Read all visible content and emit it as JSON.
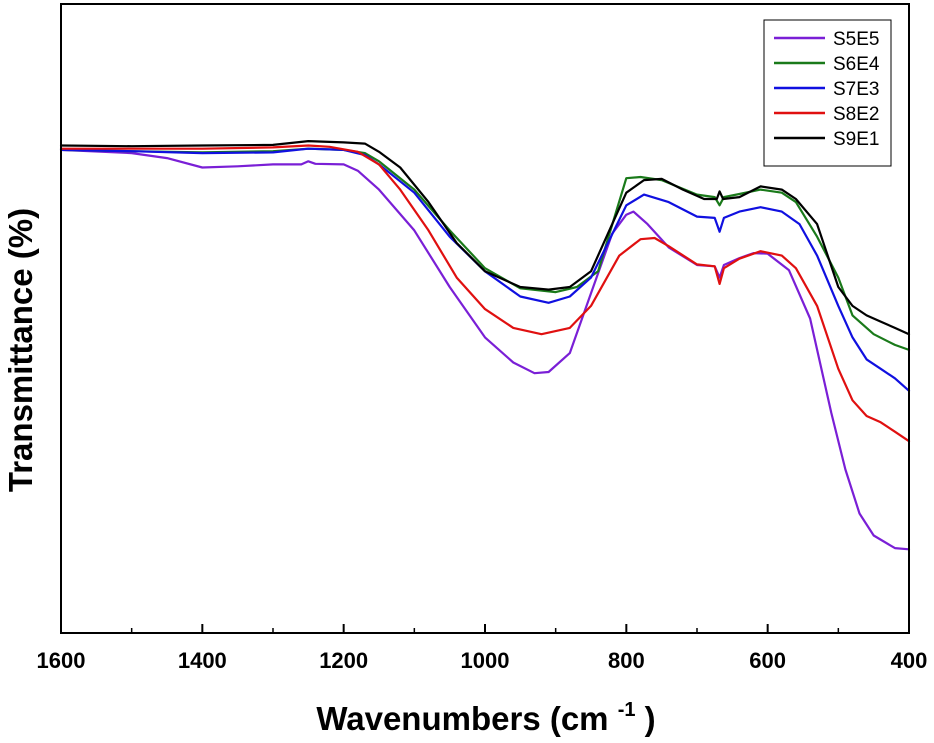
{
  "chart_data": {
    "type": "line",
    "title": "",
    "xlabel": "Wavenumbers (cm",
    "xlabel_sup": "-1",
    "xlabel_close": ")",
    "ylabel": "Transmittance (%)",
    "xlim": [
      1600,
      400
    ],
    "ylim": [
      0,
      100
    ],
    "x_ticks": [
      1600,
      1400,
      1200,
      1000,
      800,
      600,
      400
    ],
    "x_tick_labels": [
      "1600",
      "1400",
      "1200",
      "1000",
      "800",
      "600",
      "400"
    ],
    "x_minor_ticks": [
      1500,
      1300,
      1100,
      900,
      700,
      500
    ],
    "y_ticks_shown": false,
    "grid": false,
    "legend_position": "top-right",
    "series": [
      {
        "name": "S5E5",
        "color": "#7a1fd6",
        "points": [
          [
            1600,
            76.8
          ],
          [
            1500,
            76.3
          ],
          [
            1450,
            75.5
          ],
          [
            1400,
            74.0
          ],
          [
            1350,
            74.2
          ],
          [
            1300,
            74.5
          ],
          [
            1260,
            74.5
          ],
          [
            1250,
            75.0
          ],
          [
            1240,
            74.6
          ],
          [
            1200,
            74.5
          ],
          [
            1180,
            73.5
          ],
          [
            1150,
            70.5
          ],
          [
            1100,
            64.0
          ],
          [
            1050,
            55.0
          ],
          [
            1000,
            47.0
          ],
          [
            960,
            43.0
          ],
          [
            930,
            41.3
          ],
          [
            910,
            41.5
          ],
          [
            880,
            44.5
          ],
          [
            850,
            54.0
          ],
          [
            820,
            63.5
          ],
          [
            800,
            66.5
          ],
          [
            790,
            67.0
          ],
          [
            770,
            65.0
          ],
          [
            740,
            61.3
          ],
          [
            700,
            58.5
          ],
          [
            675,
            58.3
          ],
          [
            668,
            56.5
          ],
          [
            662,
            58.5
          ],
          [
            640,
            59.6
          ],
          [
            620,
            60.4
          ],
          [
            600,
            60.3
          ],
          [
            570,
            57.7
          ],
          [
            540,
            50.0
          ],
          [
            510,
            35.0
          ],
          [
            490,
            26.0
          ],
          [
            470,
            19.0
          ],
          [
            450,
            15.5
          ],
          [
            420,
            13.5
          ],
          [
            400,
            13.3
          ]
        ]
      },
      {
        "name": "S6E4",
        "color": "#1a7a1a",
        "points": [
          [
            1600,
            76.8
          ],
          [
            1500,
            76.6
          ],
          [
            1400,
            76.4
          ],
          [
            1300,
            76.6
          ],
          [
            1250,
            77.0
          ],
          [
            1200,
            76.8
          ],
          [
            1170,
            76.3
          ],
          [
            1150,
            75.0
          ],
          [
            1100,
            70.5
          ],
          [
            1050,
            64.0
          ],
          [
            1000,
            58.0
          ],
          [
            950,
            54.8
          ],
          [
            900,
            54.2
          ],
          [
            870,
            55.0
          ],
          [
            840,
            57.5
          ],
          [
            800,
            72.3
          ],
          [
            780,
            72.5
          ],
          [
            750,
            72.0
          ],
          [
            700,
            69.7
          ],
          [
            675,
            69.3
          ],
          [
            668,
            68.0
          ],
          [
            662,
            69.3
          ],
          [
            640,
            69.8
          ],
          [
            610,
            70.5
          ],
          [
            580,
            70.0
          ],
          [
            560,
            68.5
          ],
          [
            530,
            63.0
          ],
          [
            500,
            56.5
          ],
          [
            480,
            50.5
          ],
          [
            450,
            47.5
          ],
          [
            420,
            45.8
          ],
          [
            400,
            45.0
          ]
        ]
      },
      {
        "name": "S7E3",
        "color": "#1010e0",
        "points": [
          [
            1600,
            76.8
          ],
          [
            1500,
            76.6
          ],
          [
            1400,
            76.3
          ],
          [
            1300,
            76.4
          ],
          [
            1250,
            77.0
          ],
          [
            1200,
            76.8
          ],
          [
            1170,
            76.0
          ],
          [
            1150,
            74.5
          ],
          [
            1100,
            70.0
          ],
          [
            1050,
            63.0
          ],
          [
            1000,
            57.5
          ],
          [
            950,
            53.5
          ],
          [
            910,
            52.5
          ],
          [
            880,
            53.5
          ],
          [
            850,
            56.5
          ],
          [
            800,
            68.0
          ],
          [
            775,
            69.7
          ],
          [
            740,
            68.5
          ],
          [
            700,
            66.2
          ],
          [
            675,
            66.0
          ],
          [
            668,
            63.8
          ],
          [
            662,
            66.0
          ],
          [
            640,
            67.0
          ],
          [
            610,
            67.7
          ],
          [
            580,
            67.0
          ],
          [
            555,
            65.0
          ],
          [
            530,
            60.0
          ],
          [
            500,
            52.0
          ],
          [
            480,
            47.0
          ],
          [
            460,
            43.5
          ],
          [
            440,
            42.0
          ],
          [
            420,
            40.5
          ],
          [
            400,
            38.5
          ]
        ]
      },
      {
        "name": "S8E2",
        "color": "#e01010",
        "points": [
          [
            1600,
            77.0
          ],
          [
            1500,
            77.0
          ],
          [
            1400,
            77.0
          ],
          [
            1300,
            77.2
          ],
          [
            1250,
            77.5
          ],
          [
            1220,
            77.3
          ],
          [
            1180,
            76.5
          ],
          [
            1150,
            74.5
          ],
          [
            1120,
            70.5
          ],
          [
            1080,
            64.0
          ],
          [
            1040,
            56.5
          ],
          [
            1000,
            51.5
          ],
          [
            960,
            48.5
          ],
          [
            920,
            47.5
          ],
          [
            880,
            48.5
          ],
          [
            850,
            52.0
          ],
          [
            810,
            60.0
          ],
          [
            780,
            62.6
          ],
          [
            760,
            62.8
          ],
          [
            740,
            61.5
          ],
          [
            700,
            58.6
          ],
          [
            675,
            58.3
          ],
          [
            668,
            55.5
          ],
          [
            662,
            58.0
          ],
          [
            640,
            59.5
          ],
          [
            610,
            60.7
          ],
          [
            580,
            60.0
          ],
          [
            560,
            58.0
          ],
          [
            530,
            52.0
          ],
          [
            500,
            42.0
          ],
          [
            480,
            37.0
          ],
          [
            460,
            34.5
          ],
          [
            440,
            33.5
          ],
          [
            420,
            32.0
          ],
          [
            400,
            30.5
          ]
        ]
      },
      {
        "name": "S9E1",
        "color": "#000000",
        "points": [
          [
            1600,
            77.5
          ],
          [
            1500,
            77.4
          ],
          [
            1400,
            77.5
          ],
          [
            1300,
            77.6
          ],
          [
            1250,
            78.2
          ],
          [
            1200,
            78.0
          ],
          [
            1170,
            77.8
          ],
          [
            1150,
            76.5
          ],
          [
            1120,
            74.0
          ],
          [
            1080,
            68.5
          ],
          [
            1040,
            62.0
          ],
          [
            1000,
            57.5
          ],
          [
            950,
            55.0
          ],
          [
            910,
            54.6
          ],
          [
            880,
            55.0
          ],
          [
            850,
            57.5
          ],
          [
            800,
            70.0
          ],
          [
            775,
            72.0
          ],
          [
            750,
            72.2
          ],
          [
            720,
            70.5
          ],
          [
            690,
            69.0
          ],
          [
            672,
            69.0
          ],
          [
            668,
            70.2
          ],
          [
            663,
            69.0
          ],
          [
            640,
            69.3
          ],
          [
            610,
            71.0
          ],
          [
            580,
            70.5
          ],
          [
            560,
            69.0
          ],
          [
            530,
            65.0
          ],
          [
            500,
            55.0
          ],
          [
            480,
            52.0
          ],
          [
            460,
            50.5
          ],
          [
            440,
            49.5
          ],
          [
            420,
            48.5
          ],
          [
            400,
            47.5
          ]
        ]
      }
    ]
  }
}
